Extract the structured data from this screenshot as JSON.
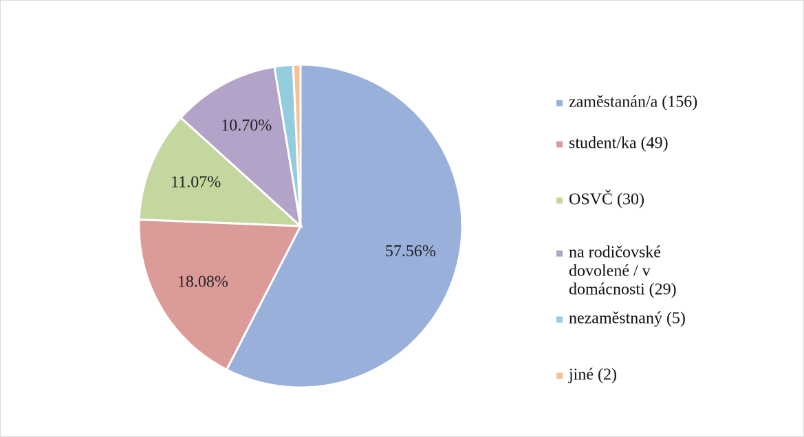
{
  "chart_data": {
    "type": "pie",
    "categories": [
      "zaměstanán/a (156)",
      "student/ka (49)",
      "OSVČ (30)",
      "na rodičovské dovolené / v domácnosti (29)",
      "nezaměstnaný (5)",
      "jiné (2)"
    ],
    "values": [
      57.56,
      18.08,
      11.07,
      10.7,
      1.85,
      0.74
    ],
    "value_labels": [
      "57.56%",
      "18.08%",
      "11.07%",
      "10.70%",
      null,
      null
    ],
    "colors": [
      "#98b0da",
      "#db9b99",
      "#c4d79e",
      "#b3a3c8",
      "#93cddd",
      "#fac090"
    ],
    "legend": "right"
  }
}
